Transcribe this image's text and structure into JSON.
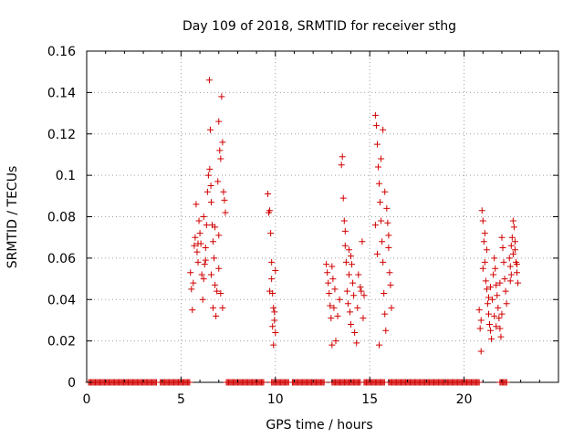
{
  "chart_data": {
    "type": "scatter",
    "title": "Day 109 of 2018, SRMTID for receiver sthg",
    "xlabel": "GPS time / hours",
    "ylabel": "SRMTID / TECUs",
    "xlim": [
      0,
      25
    ],
    "ylim": [
      0,
      0.16
    ],
    "xticks": [
      0,
      5,
      10,
      15,
      20
    ],
    "xtick_labels": [
      "0",
      "5",
      "10",
      "15",
      "20"
    ],
    "yticks": [
      0,
      0.02,
      0.04,
      0.06,
      0.08,
      0.1,
      0.12,
      0.14,
      0.16
    ],
    "ytick_labels": [
      "0",
      "0.02",
      "0.04",
      "0.06",
      "0.08",
      "0.1",
      "0.12",
      "0.14",
      "0.16"
    ],
    "grid": true,
    "marker": "plus",
    "color": "#d00000",
    "series": [
      {
        "name": "SRMTID",
        "points": [
          [
            5.5,
            0.053
          ],
          [
            5.55,
            0.045
          ],
          [
            5.6,
            0.035
          ],
          [
            5.65,
            0.048
          ],
          [
            5.7,
            0.066
          ],
          [
            5.75,
            0.07
          ],
          [
            5.8,
            0.086
          ],
          [
            5.85,
            0.063
          ],
          [
            5.9,
            0.058
          ],
          [
            5.95,
            0.078
          ],
          [
            6.0,
            0.072
          ],
          [
            6.05,
            0.067
          ],
          [
            6.1,
            0.052
          ],
          [
            6.15,
            0.04
          ],
          [
            6.2,
            0.05
          ],
          [
            6.25,
            0.057
          ],
          [
            6.3,
            0.065
          ],
          [
            6.35,
            0.076
          ],
          [
            6.4,
            0.092
          ],
          [
            6.45,
            0.1
          ],
          [
            6.5,
            0.146
          ],
          [
            6.52,
            0.103
          ],
          [
            6.55,
            0.122
          ],
          [
            6.58,
            0.095
          ],
          [
            6.6,
            0.087
          ],
          [
            6.65,
            0.076
          ],
          [
            6.7,
            0.068
          ],
          [
            6.75,
            0.06
          ],
          [
            6.8,
            0.047
          ],
          [
            6.85,
            0.032
          ],
          [
            6.9,
            0.044
          ],
          [
            6.95,
            0.097
          ],
          [
            7.0,
            0.126
          ],
          [
            7.05,
            0.112
          ],
          [
            7.1,
            0.108
          ],
          [
            7.15,
            0.138
          ],
          [
            7.2,
            0.116
          ],
          [
            7.25,
            0.092
          ],
          [
            7.3,
            0.088
          ],
          [
            7.35,
            0.082
          ],
          [
            6.6,
            0.052
          ],
          [
            6.7,
            0.036
          ],
          [
            6.2,
            0.08
          ],
          [
            6.3,
            0.059
          ],
          [
            7.0,
            0.055
          ],
          [
            7.1,
            0.043
          ],
          [
            7.2,
            0.036
          ],
          [
            5.9,
            0.067
          ],
          [
            6.8,
            0.075
          ],
          [
            7.0,
            0.071
          ],
          [
            9.6,
            0.091
          ],
          [
            9.65,
            0.082
          ],
          [
            9.7,
            0.083
          ],
          [
            9.75,
            0.072
          ],
          [
            9.8,
            0.058
          ],
          [
            9.85,
            0.043
          ],
          [
            9.9,
            0.036
          ],
          [
            9.95,
            0.03
          ],
          [
            10.0,
            0.024
          ],
          [
            9.9,
            0.018
          ],
          [
            9.7,
            0.044
          ],
          [
            9.8,
            0.05
          ],
          [
            10.0,
            0.054
          ],
          [
            9.95,
            0.034
          ],
          [
            9.85,
            0.027
          ],
          [
            12.7,
            0.057
          ],
          [
            12.75,
            0.053
          ],
          [
            12.8,
            0.048
          ],
          [
            12.85,
            0.043
          ],
          [
            12.9,
            0.037
          ],
          [
            12.95,
            0.031
          ],
          [
            13.0,
            0.056
          ],
          [
            13.05,
            0.05
          ],
          [
            13.1,
            0.036
          ],
          [
            13.15,
            0.045
          ],
          [
            13.0,
            0.018
          ],
          [
            13.2,
            0.02
          ],
          [
            13.3,
            0.032
          ],
          [
            13.4,
            0.04
          ],
          [
            13.5,
            0.105
          ],
          [
            13.55,
            0.109
          ],
          [
            13.6,
            0.089
          ],
          [
            13.65,
            0.078
          ],
          [
            13.7,
            0.066
          ],
          [
            13.75,
            0.058
          ],
          [
            13.8,
            0.044
          ],
          [
            13.85,
            0.038
          ],
          [
            13.9,
            0.052
          ],
          [
            13.95,
            0.034
          ],
          [
            14.0,
            0.028
          ],
          [
            14.05,
            0.057
          ],
          [
            14.1,
            0.048
          ],
          [
            14.15,
            0.042
          ],
          [
            14.2,
            0.024
          ],
          [
            14.3,
            0.019
          ],
          [
            14.35,
            0.036
          ],
          [
            14.4,
            0.052
          ],
          [
            14.5,
            0.046
          ],
          [
            14.55,
            0.044
          ],
          [
            14.6,
            0.068
          ],
          [
            14.65,
            0.031
          ],
          [
            14.7,
            0.042
          ],
          [
            14.0,
            0.061
          ],
          [
            13.7,
            0.073
          ],
          [
            13.9,
            0.064
          ],
          [
            15.3,
            0.129
          ],
          [
            15.35,
            0.124
          ],
          [
            15.4,
            0.115
          ],
          [
            15.45,
            0.104
          ],
          [
            15.5,
            0.096
          ],
          [
            15.55,
            0.087
          ],
          [
            15.6,
            0.078
          ],
          [
            15.65,
            0.068
          ],
          [
            15.7,
            0.058
          ],
          [
            15.75,
            0.043
          ],
          [
            15.8,
            0.033
          ],
          [
            15.85,
            0.025
          ],
          [
            15.5,
            0.018
          ],
          [
            15.9,
            0.084
          ],
          [
            15.95,
            0.077
          ],
          [
            16.0,
            0.065
          ],
          [
            16.05,
            0.053
          ],
          [
            16.1,
            0.047
          ],
          [
            16.15,
            0.036
          ],
          [
            15.6,
            0.108
          ],
          [
            15.3,
            0.076
          ],
          [
            15.4,
            0.062
          ],
          [
            15.7,
            0.122
          ],
          [
            15.8,
            0.092
          ],
          [
            16.0,
            0.071
          ],
          [
            20.8,
            0.035
          ],
          [
            20.85,
            0.026
          ],
          [
            20.9,
            0.015
          ],
          [
            20.95,
            0.083
          ],
          [
            21.0,
            0.078
          ],
          [
            21.05,
            0.068
          ],
          [
            21.1,
            0.058
          ],
          [
            21.15,
            0.049
          ],
          [
            21.2,
            0.045
          ],
          [
            21.25,
            0.038
          ],
          [
            21.3,
            0.033
          ],
          [
            21.35,
            0.028
          ],
          [
            21.4,
            0.025
          ],
          [
            21.45,
            0.021
          ],
          [
            21.5,
            0.04
          ],
          [
            21.55,
            0.052
          ],
          [
            21.6,
            0.06
          ],
          [
            21.65,
            0.055
          ],
          [
            21.7,
            0.047
          ],
          [
            21.75,
            0.042
          ],
          [
            21.8,
            0.036
          ],
          [
            21.85,
            0.031
          ],
          [
            21.9,
            0.026
          ],
          [
            21.95,
            0.022
          ],
          [
            22.0,
            0.07
          ],
          [
            22.05,
            0.065
          ],
          [
            22.1,
            0.058
          ],
          [
            22.15,
            0.05
          ],
          [
            22.2,
            0.044
          ],
          [
            22.25,
            0.038
          ],
          [
            21.0,
            0.055
          ],
          [
            21.2,
            0.064
          ],
          [
            21.3,
            0.041
          ],
          [
            21.6,
            0.032
          ],
          [
            21.9,
            0.048
          ],
          [
            22.0,
            0.033
          ],
          [
            21.4,
            0.046
          ],
          [
            21.7,
            0.027
          ],
          [
            20.9,
            0.03
          ],
          [
            21.1,
            0.072
          ],
          [
            22.4,
            0.06
          ],
          [
            22.45,
            0.056
          ],
          [
            22.5,
            0.066
          ],
          [
            22.55,
            0.07
          ],
          [
            22.6,
            0.078
          ],
          [
            22.65,
            0.075
          ],
          [
            22.7,
            0.064
          ],
          [
            22.75,
            0.058
          ],
          [
            22.8,
            0.053
          ],
          [
            22.85,
            0.048
          ],
          [
            22.5,
            0.052
          ],
          [
            22.6,
            0.062
          ],
          [
            22.7,
            0.068
          ],
          [
            22.8,
            0.057
          ],
          [
            22.45,
            0.049
          ]
        ]
      }
    ],
    "zero_runs": [
      [
        0.1,
        3.7
      ],
      [
        3.9,
        5.5
      ],
      [
        7.4,
        9.4
      ],
      [
        9.8,
        10.7
      ],
      [
        10.9,
        12.6
      ],
      [
        13.0,
        14.5
      ],
      [
        14.7,
        15.8
      ],
      [
        16.0,
        20.8
      ],
      [
        21.9,
        22.3
      ]
    ]
  }
}
